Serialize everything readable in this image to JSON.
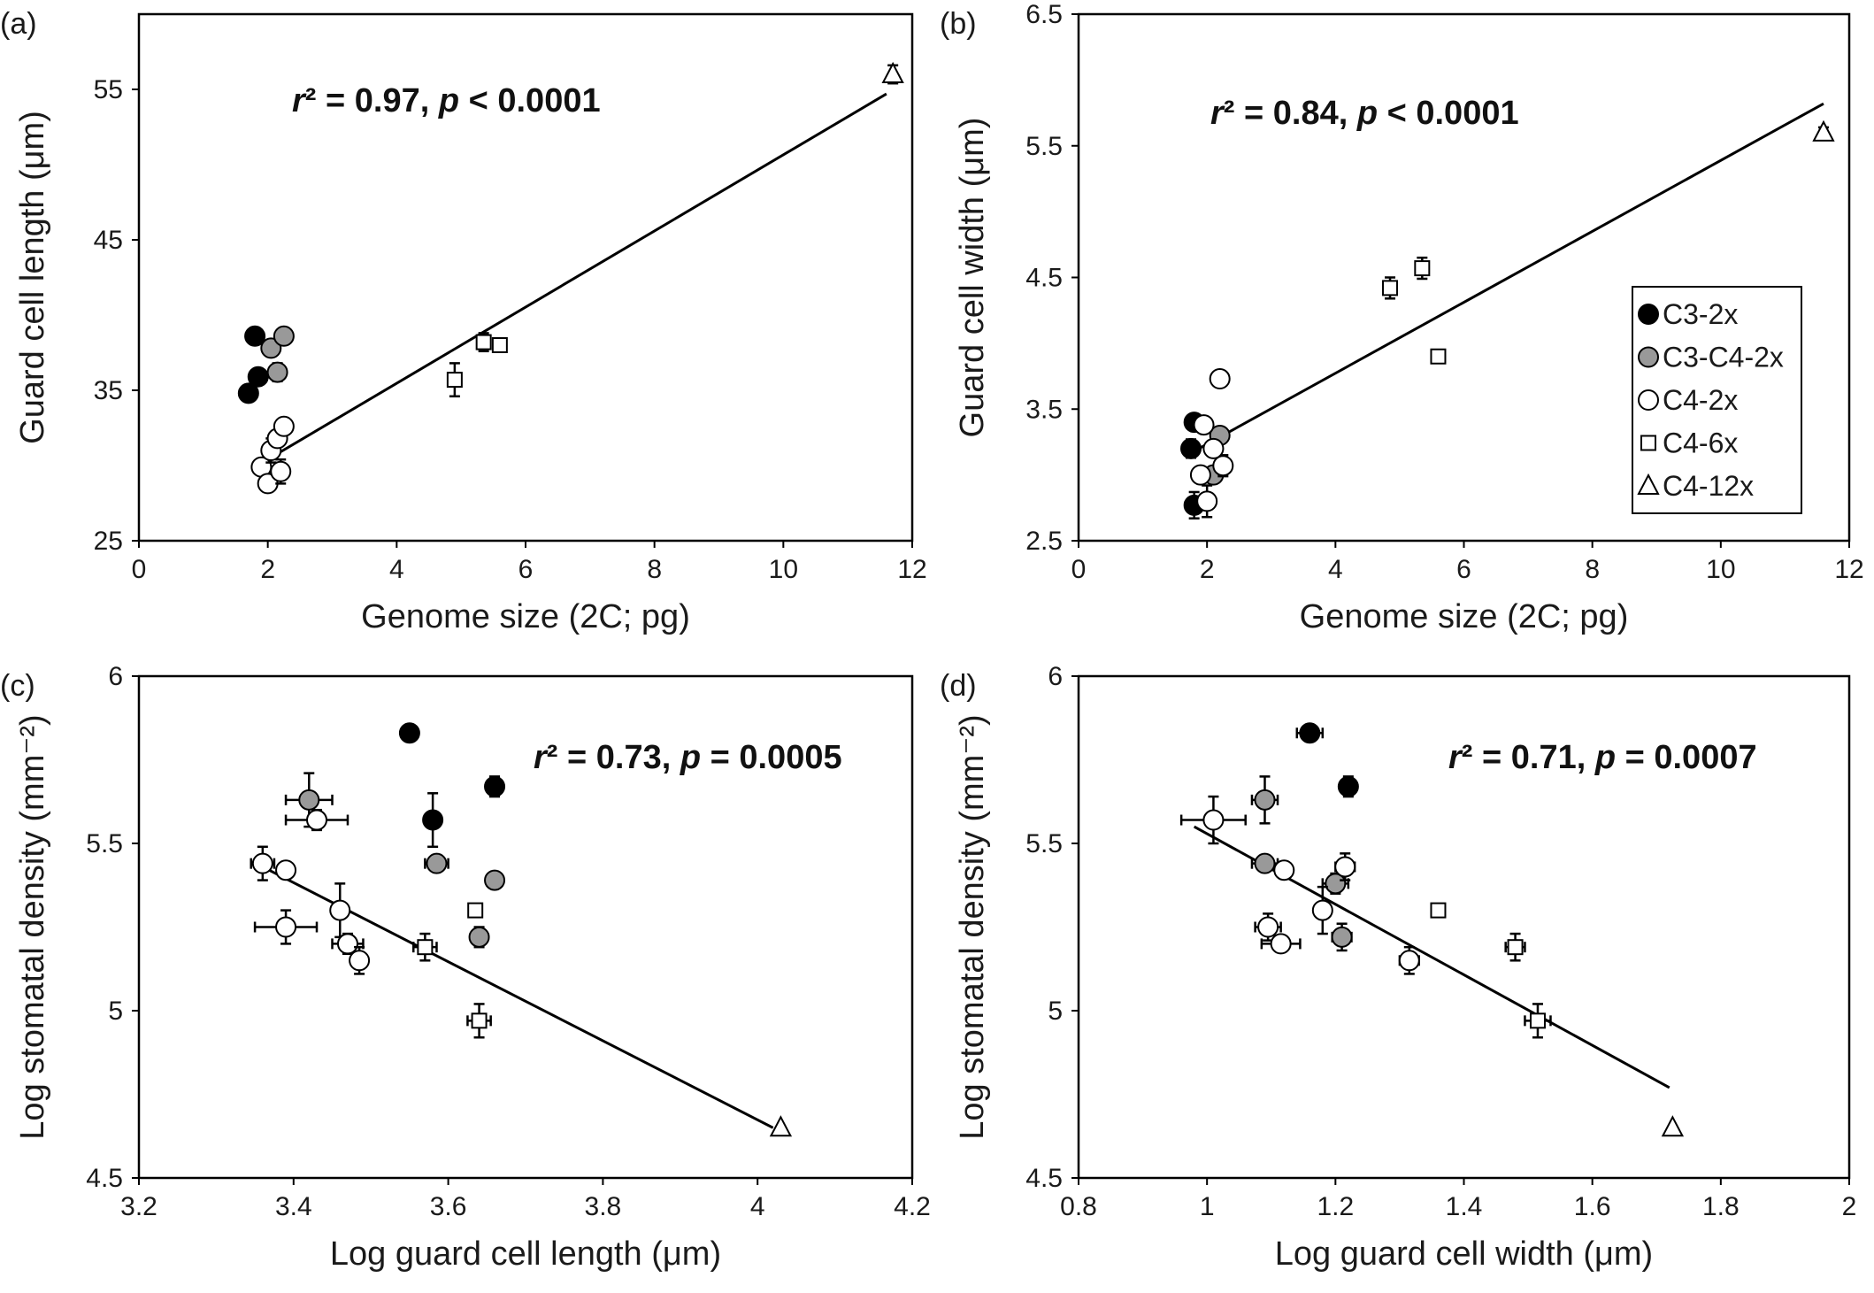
{
  "legend": [
    {
      "label": "C3-2x",
      "marker": "circle",
      "fill": "#000000"
    },
    {
      "label": "C3-C4-2x",
      "marker": "circle",
      "fill": "#999999"
    },
    {
      "label": "C4-2x",
      "marker": "circle",
      "fill": "#ffffff"
    },
    {
      "label": "C4-6x",
      "marker": "square",
      "fill": "#ffffff"
    },
    {
      "label": "C4-12x",
      "marker": "triangle",
      "fill": "#ffffff"
    }
  ],
  "chart_data": [
    {
      "panel": "(a)",
      "type": "scatter",
      "xlabel": "Genome size (2C; pg)",
      "ylabel": "Guard cell length (μm)",
      "xlim": [
        0,
        12
      ],
      "ylim": [
        25,
        60
      ],
      "xticks": [
        "0",
        "2",
        "4",
        "6",
        "8",
        "10",
        "12"
      ],
      "yticks": [
        "25",
        "35",
        "45",
        "55"
      ],
      "annotation": {
        "r2": "r² = 0.97,",
        "p": "p < 0.0001"
      },
      "fit": [
        [
          1.8,
          29.9
        ],
        [
          11.6,
          54.7
        ]
      ],
      "series": [
        {
          "group": "C3-2x",
          "points": [
            [
              1.7,
              34.8,
              0,
              0
            ],
            [
              1.8,
              38.6,
              0,
              0
            ],
            [
              1.85,
              35.9,
              0,
              0.5
            ]
          ]
        },
        {
          "group": "C3-C4-2x",
          "points": [
            [
              2.05,
              37.8,
              0,
              0
            ],
            [
              2.25,
              38.6,
              0,
              0
            ],
            [
              2.15,
              36.2,
              0,
              0.6
            ]
          ]
        },
        {
          "group": "C4-2x",
          "points": [
            [
              1.9,
              29.9,
              0,
              0
            ],
            [
              2.0,
              28.8,
              0,
              0
            ],
            [
              2.05,
              31.0,
              0,
              0.8
            ],
            [
              2.15,
              31.8,
              0,
              0.5
            ],
            [
              2.25,
              32.6,
              0,
              0
            ],
            [
              2.2,
              29.6,
              0,
              0.8
            ]
          ]
        },
        {
          "group": "C4-6x",
          "points": [
            [
              4.9,
              35.7,
              0,
              1.1
            ],
            [
              5.35,
              38.2,
              0,
              0.6
            ],
            [
              5.6,
              38.0,
              0,
              0
            ]
          ]
        },
        {
          "group": "C4-12x",
          "points": [
            [
              11.7,
              56.0,
              0,
              0.6
            ]
          ]
        }
      ]
    },
    {
      "panel": "(b)",
      "type": "scatter",
      "xlabel": "Genome size (2C; pg)",
      "ylabel": "Guard cell width (μm)",
      "xlim": [
        0,
        12
      ],
      "ylim": [
        2.5,
        6.5
      ],
      "xticks": [
        "0",
        "2",
        "4",
        "6",
        "8",
        "10",
        "12"
      ],
      "yticks": [
        "2.5",
        "3.5",
        "4.5",
        "5.5",
        "6.5"
      ],
      "annotation": {
        "r2": "r² = 0.84,",
        "p": "p < 0.0001"
      },
      "fit": [
        [
          1.8,
          3.18
        ],
        [
          11.6,
          5.82
        ]
      ],
      "series": [
        {
          "group": "C3-2x",
          "points": [
            [
              1.75,
              3.2,
              0,
              0.07
            ],
            [
              1.8,
              3.4,
              0,
              0
            ],
            [
              1.8,
              2.77,
              0,
              0.1
            ]
          ]
        },
        {
          "group": "C3-C4-2x",
          "points": [
            [
              2.2,
              3.3,
              0,
              0.06
            ],
            [
              2.1,
              3.0,
              0,
              0.06
            ]
          ]
        },
        {
          "group": "C4-2x",
          "points": [
            [
              2.2,
              3.73,
              0,
              0.06
            ],
            [
              1.95,
              3.38,
              0,
              0
            ],
            [
              1.9,
              3.0,
              0,
              0.05
            ],
            [
              2.0,
              2.8,
              0,
              0.12
            ],
            [
              2.25,
              3.07,
              0,
              0.08
            ],
            [
              2.1,
              3.2,
              0,
              0
            ]
          ]
        },
        {
          "group": "C4-6x",
          "points": [
            [
              4.85,
              4.42,
              0,
              0.08
            ],
            [
              5.35,
              4.57,
              0,
              0.08
            ],
            [
              5.6,
              3.9,
              0,
              0
            ]
          ]
        },
        {
          "group": "C4-12x",
          "points": [
            [
              11.6,
              5.6,
              0,
              0.04
            ]
          ]
        }
      ]
    },
    {
      "panel": "(c)",
      "type": "scatter",
      "xlabel": "Log guard cell length (μm)",
      "ylabel": "Log stomatal density (mm⁻²)",
      "xlim": [
        3.2,
        4.2
      ],
      "ylim": [
        4.5,
        6.0
      ],
      "xticks": [
        "3.2",
        "3.4",
        "3.6",
        "3.8",
        "4",
        "4.2"
      ],
      "yticks": [
        "4.5",
        "5",
        "5.5",
        "6"
      ],
      "annotation": {
        "r2": "r² = 0.73,",
        "p": "p = 0.0005"
      },
      "fit": [
        [
          3.36,
          5.43
        ],
        [
          4.02,
          4.65
        ]
      ],
      "series": [
        {
          "group": "C3-2x",
          "points": [
            [
              3.55,
              5.83,
              0,
              0
            ],
            [
              3.58,
              5.57,
              0,
              0.08
            ],
            [
              3.66,
              5.67,
              0,
              0.03
            ]
          ]
        },
        {
          "group": "C3-C4-2x",
          "points": [
            [
              3.42,
              5.63,
              0.03,
              0.08
            ],
            [
              3.585,
              5.44,
              0.015,
              0.02
            ],
            [
              3.64,
              5.22,
              0,
              0.03
            ],
            [
              3.66,
              5.39,
              0,
              0
            ]
          ]
        },
        {
          "group": "C4-2x",
          "points": [
            [
              3.43,
              5.57,
              0.04,
              0.03
            ],
            [
              3.36,
              5.44,
              0.015,
              0.05
            ],
            [
              3.39,
              5.42,
              0,
              0
            ],
            [
              3.46,
              5.3,
              0,
              0.08
            ],
            [
              3.39,
              5.25,
              0.04,
              0.05
            ],
            [
              3.47,
              5.2,
              0.02,
              0.03
            ],
            [
              3.485,
              5.15,
              0.01,
              0.04
            ]
          ]
        },
        {
          "group": "C4-6x",
          "points": [
            [
              3.57,
              5.19,
              0.015,
              0.04
            ],
            [
              3.635,
              5.3,
              0,
              0
            ],
            [
              3.64,
              4.97,
              0.015,
              0.05
            ]
          ]
        },
        {
          "group": "C4-12x",
          "points": [
            [
              4.03,
              4.65,
              0,
              0
            ]
          ]
        }
      ]
    },
    {
      "panel": "(d)",
      "type": "scatter",
      "xlabel": "Log guard cell width (μm)",
      "ylabel": "Log stomatal density (mm⁻²)",
      "xlim": [
        0.8,
        2.0
      ],
      "ylim": [
        4.5,
        6.0
      ],
      "xticks": [
        "0.8",
        "1",
        "1.2",
        "1.4",
        "1.6",
        "1.8",
        "2"
      ],
      "yticks": [
        "4.5",
        "5",
        "5.5",
        "6"
      ],
      "annotation": {
        "r2": "r² = 0.71,",
        "p": "p = 0.0007"
      },
      "fit": [
        [
          0.98,
          5.55
        ],
        [
          1.72,
          4.77
        ]
      ],
      "series": [
        {
          "group": "C3-2x",
          "points": [
            [
              1.16,
              5.83,
              0.02,
              0
            ],
            [
              1.22,
              5.67,
              0,
              0.03
            ]
          ]
        },
        {
          "group": "C3-C4-2x",
          "points": [
            [
              1.09,
              5.63,
              0.02,
              0.07
            ],
            [
              1.09,
              5.44,
              0.02,
              0
            ],
            [
              1.2,
              5.38,
              0.02,
              0.03
            ],
            [
              1.21,
              5.22,
              0.015,
              0.04
            ]
          ]
        },
        {
          "group": "C4-2x",
          "points": [
            [
              1.01,
              5.57,
              0.05,
              0.07
            ],
            [
              1.12,
              5.42,
              0,
              0
            ],
            [
              1.18,
              5.3,
              0,
              0.07
            ],
            [
              1.095,
              5.25,
              0.02,
              0.04
            ],
            [
              1.115,
              5.2,
              0.03,
              0
            ],
            [
              1.215,
              5.43,
              0.015,
              0.04
            ],
            [
              1.315,
              5.15,
              0.015,
              0.04
            ]
          ]
        },
        {
          "group": "C4-6x",
          "points": [
            [
              1.36,
              5.3,
              0,
              0
            ],
            [
              1.48,
              5.19,
              0.015,
              0.04
            ],
            [
              1.515,
              4.97,
              0.02,
              0.05
            ]
          ]
        },
        {
          "group": "C4-12x",
          "points": [
            [
              1.725,
              4.65,
              0,
              0
            ]
          ]
        }
      ]
    }
  ]
}
